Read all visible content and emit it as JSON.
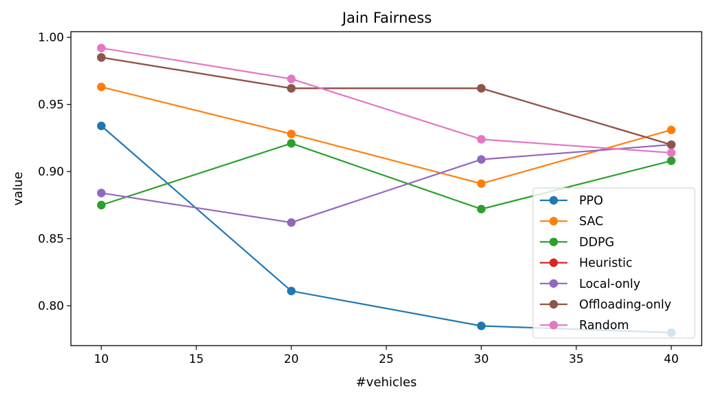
{
  "chart_data": {
    "type": "line",
    "title": "Jain Fairness",
    "xlabel": "#vehicles",
    "ylabel": "value",
    "x": [
      10,
      20,
      30,
      40
    ],
    "xlim": [
      8.4,
      41.6
    ],
    "ylim": [
      0.7703,
      1.0042
    ],
    "xticks": [
      10,
      15,
      20,
      25,
      30,
      35,
      40
    ],
    "yticks": [
      0.8,
      0.85,
      0.9,
      0.95,
      1.0
    ],
    "ytick_labels": [
      "0.80",
      "0.85",
      "0.90",
      "0.95",
      "1.00"
    ],
    "grid": false,
    "legend_position": "lower-right",
    "series": [
      {
        "name": "PPO",
        "color": "#1f77b4",
        "values": [
          0.934,
          0.811,
          0.785,
          0.78
        ]
      },
      {
        "name": "SAC",
        "color": "#ff7f0e",
        "values": [
          0.963,
          0.928,
          0.891,
          0.931
        ]
      },
      {
        "name": "DDPG",
        "color": "#2ca02c",
        "values": [
          0.875,
          0.921,
          0.872,
          0.908
        ]
      },
      {
        "name": "Heuristic",
        "color": "#d62728",
        "values": [
          0.985,
          0.962,
          0.962,
          0.92
        ]
      },
      {
        "name": "Local-only",
        "color": "#9467bd",
        "values": [
          0.884,
          0.862,
          0.909,
          0.92
        ]
      },
      {
        "name": "Offloading-only",
        "color": "#8c564b",
        "values": [
          0.985,
          0.962,
          0.962,
          0.92
        ]
      },
      {
        "name": "Random",
        "color": "#e377c2",
        "values": [
          0.992,
          0.969,
          0.924,
          0.914
        ]
      }
    ]
  }
}
